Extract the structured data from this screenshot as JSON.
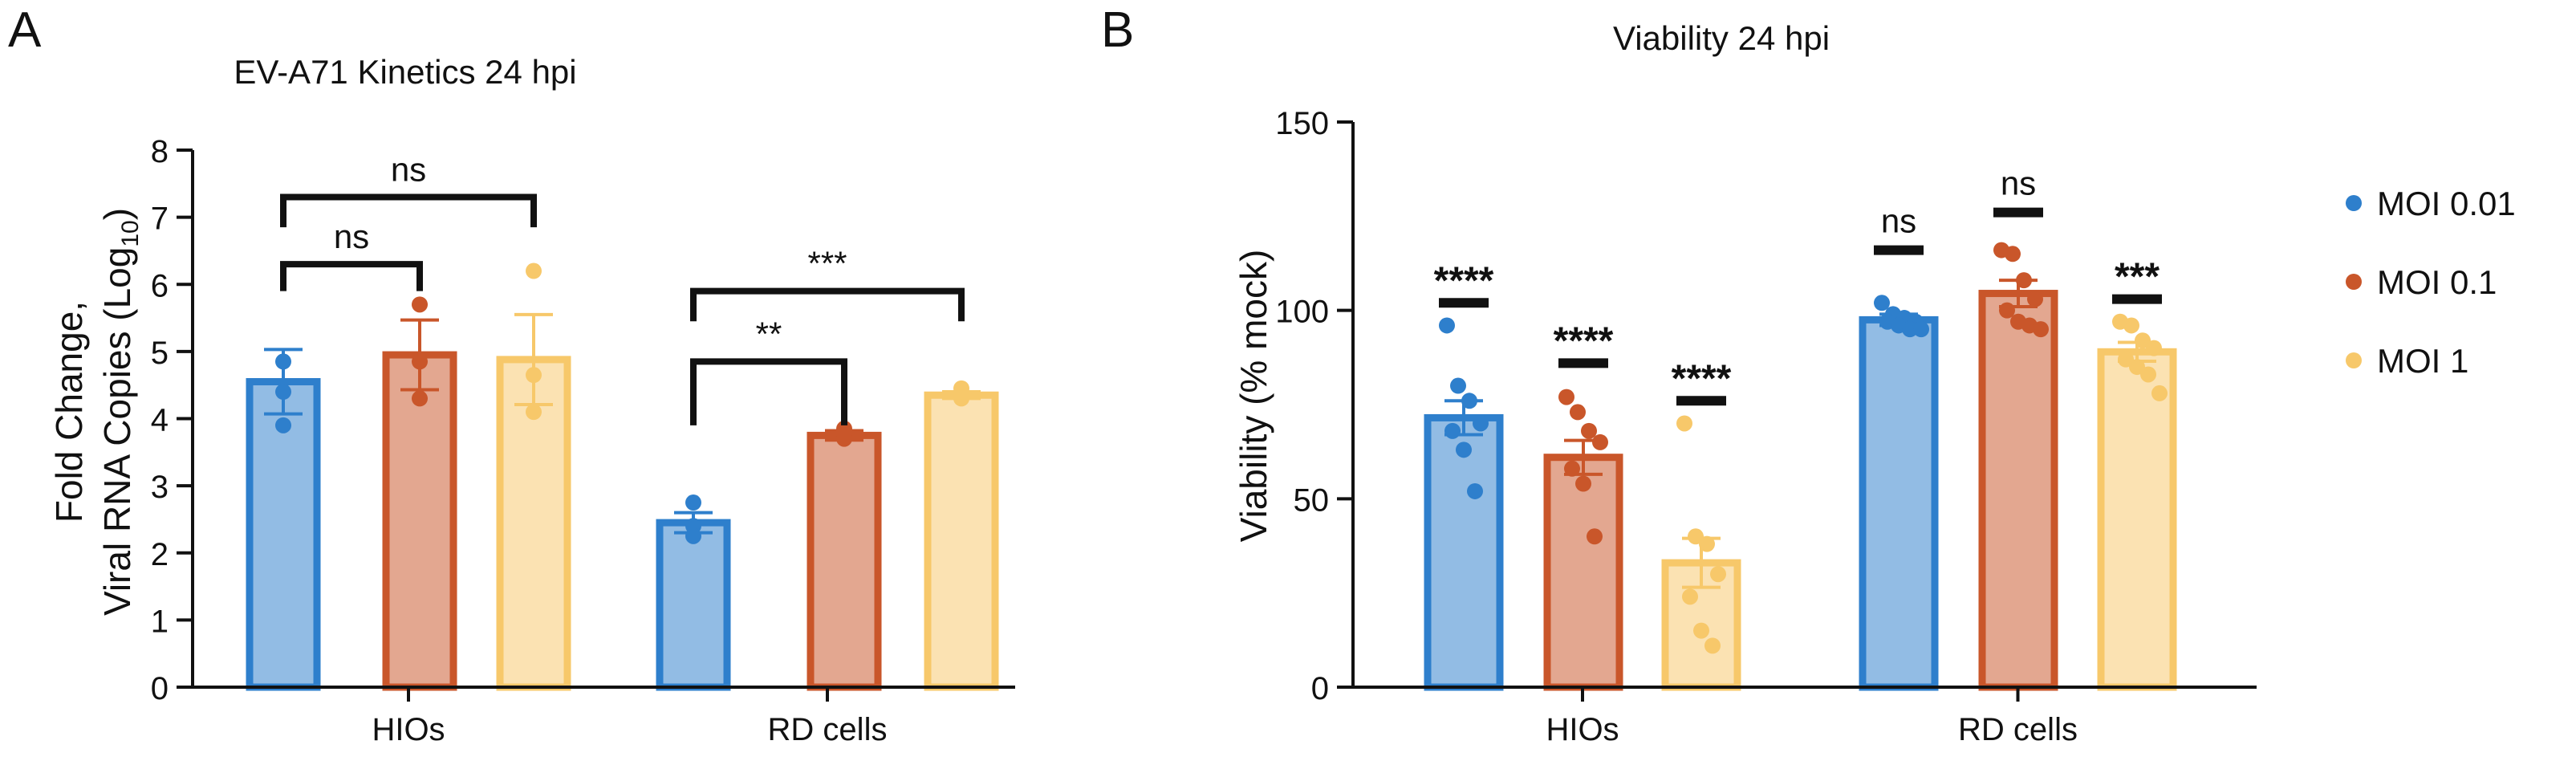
{
  "colors": {
    "moi_001": "#2E7FCC",
    "moi_01": "#C9562A",
    "moi_1": "#F7C86A",
    "axis": "#111111"
  },
  "chart_data": [
    {
      "panel": "A",
      "type": "bar",
      "title": "EV-A71 Kinetics 24 hpi",
      "ylabel_line1": "Fold Change,",
      "ylabel_line2_prefix": "Viral RNA Copies (Log",
      "ylabel_sub": "10",
      "ylabel_suffix": ")",
      "ylim": [
        0,
        8
      ],
      "yticks": [
        0,
        1,
        2,
        3,
        4,
        5,
        6,
        7,
        8
      ],
      "categories": [
        "HIOs",
        "RD cells"
      ],
      "series": [
        {
          "name": "MOI 0.01",
          "color_key": "moi_001",
          "values": [
            4.55,
            2.45
          ],
          "errors": [
            0.48,
            0.15
          ],
          "points": [
            [
              4.85,
              4.4,
              3.9
            ],
            [
              2.75,
              2.4,
              2.25
            ]
          ]
        },
        {
          "name": "MOI 0.1",
          "color_key": "moi_01",
          "values": [
            4.95,
            3.75
          ],
          "errors": [
            0.52,
            0.07
          ],
          "points": [
            [
              5.7,
              4.85,
              4.3
            ],
            [
              3.85,
              3.75,
              3.7
            ]
          ]
        },
        {
          "name": "MOI 1",
          "color_key": "moi_1",
          "values": [
            4.88,
            4.35
          ],
          "errors": [
            0.67,
            0.05
          ],
          "points": [
            [
              6.2,
              4.65,
              4.1
            ],
            [
              4.45,
              4.35,
              4.3
            ]
          ]
        }
      ],
      "annotations": [
        {
          "label": "ns",
          "category": 0,
          "from_series": 0,
          "to_series": 2,
          "y": 7.3,
          "drop": 0.45
        },
        {
          "label": "ns",
          "category": 0,
          "from_series": 0,
          "to_series": 1,
          "y": 6.3,
          "drop": 0.4
        },
        {
          "label": "***",
          "category": 1,
          "from_series": 0,
          "to_series": 2,
          "y": 5.9,
          "drop": 0.45
        },
        {
          "label": "**",
          "category": 1,
          "from_series": 0,
          "to_series": 1,
          "y": 4.85,
          "drop": 0.95
        }
      ]
    },
    {
      "panel": "B",
      "type": "bar",
      "title": "Viability 24 hpi",
      "ylabel": "Viability (% mock)",
      "ylim": [
        0,
        150
      ],
      "yticks": [
        0,
        50,
        100,
        150
      ],
      "categories": [
        "HIOs",
        "RD cells"
      ],
      "series": [
        {
          "name": "MOI 0.01",
          "color_key": "moi_001",
          "values": [
            71.5,
            97.5
          ],
          "errors": [
            4.5,
            1.5
          ],
          "points": [
            [
              96,
              80,
              76,
              70,
              68,
              63,
              52
            ],
            [
              102,
              99,
              98,
              97,
              97,
              96,
              95,
              95
            ]
          ]
        },
        {
          "name": "MOI 0.1",
          "color_key": "moi_01",
          "values": [
            61,
            104.5
          ],
          "errors": [
            4.5,
            3.5
          ],
          "points": [
            [
              77,
              73,
              68,
              65,
              58,
              54,
              40
            ],
            [
              116,
              115,
              108,
              103,
              100,
              97,
              96,
              95
            ]
          ]
        },
        {
          "name": "MOI 1",
          "color_key": "moi_1",
          "values": [
            33,
            89
          ],
          "errors": [
            6.5,
            2.5
          ],
          "points": [
            [
              70,
              40,
              38,
              30,
              24,
              15,
              11
            ],
            [
              97,
              96,
              92,
              90,
              87,
              85,
              83,
              78
            ]
          ]
        }
      ],
      "annotations": [
        {
          "label": "****",
          "category": 0,
          "series": 0,
          "y": 102
        },
        {
          "label": "****",
          "category": 0,
          "series": 1,
          "y": 86
        },
        {
          "label": "****",
          "category": 0,
          "series": 2,
          "y": 76
        },
        {
          "label": "ns",
          "category": 1,
          "series": 0,
          "y": 116
        },
        {
          "label": "ns",
          "category": 1,
          "series": 1,
          "y": 126
        },
        {
          "label": "***",
          "category": 1,
          "series": 2,
          "y": 103
        }
      ],
      "legend": {
        "placement": "right",
        "entries": [
          {
            "label": "MOI 0.01",
            "color_key": "moi_001"
          },
          {
            "label": "MOI 0.1",
            "color_key": "moi_01"
          },
          {
            "label": "MOI 1",
            "color_key": "moi_1"
          }
        ]
      }
    }
  ]
}
